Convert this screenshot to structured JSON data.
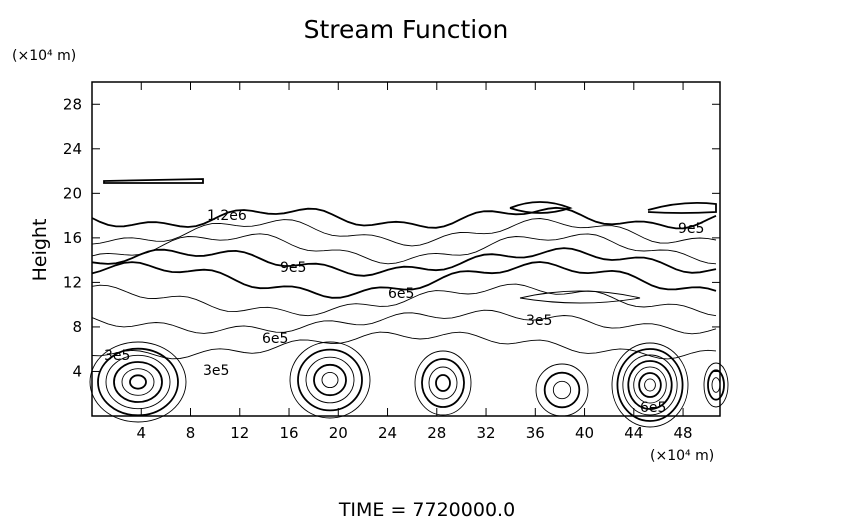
{
  "chart_data": {
    "type": "contour",
    "title": "Stream Function",
    "x_unit": "(×10⁴ m)",
    "y_unit": "(×10⁴ m)",
    "ylabel": "Height",
    "footer": "TIME  =  7720000.0",
    "xlim": [
      0,
      51
    ],
    "ylim": [
      0,
      30
    ],
    "xticks": [
      4,
      8,
      12,
      16,
      20,
      24,
      28,
      32,
      36,
      40,
      44,
      48
    ],
    "yticks": [
      4,
      8,
      12,
      16,
      20,
      24,
      28
    ],
    "levels": [
      {
        "value": 300000,
        "label": "3e5"
      },
      {
        "value": 600000,
        "label": "6e5"
      },
      {
        "value": 900000,
        "label": "9e5"
      },
      {
        "value": 1200000,
        "label": "1.2e6"
      }
    ],
    "color": "#000000"
  }
}
